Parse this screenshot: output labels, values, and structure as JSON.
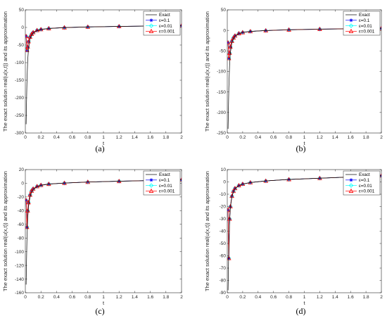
{
  "chart_data": [
    {
      "type": "line",
      "caption": "(a)",
      "xlabel": "t",
      "ylabel": "The exact solution real(u(x,t)) and its approximation",
      "xlim": [
        0,
        2
      ],
      "ylim": [
        -300,
        50
      ],
      "xticks": [
        "0",
        "0.2",
        "0.4",
        "0.6",
        "0.8",
        "1",
        "1.2",
        "1.4",
        "1.6",
        "1.8",
        "2"
      ],
      "yticks": [
        "-300",
        "-250",
        "-200",
        "-150",
        "-100",
        "-50",
        "0",
        "50"
      ],
      "legend_position": "top-right",
      "series": [
        {
          "name": "Exact",
          "color": "#000000",
          "marker": "none",
          "x": [
            0.01,
            0.02,
            0.03,
            0.04,
            0.06,
            0.08,
            0.1,
            0.15,
            0.2,
            0.3,
            0.5,
            0.8,
            1.2,
            1.6,
            2.0
          ],
          "y": [
            -275,
            -160,
            -95,
            -62,
            -33,
            -22,
            -16,
            -9,
            -6,
            -3,
            -0.5,
            1.5,
            3,
            4,
            5
          ]
        },
        {
          "name": "ε=0.1",
          "color": "#0000ff",
          "marker": "star",
          "x": [
            0.01,
            0.02,
            0.03,
            0.04,
            0.06,
            0.08,
            0.1,
            0.15,
            0.2,
            0.3,
            0.5,
            0.8,
            1.2,
            1.6,
            2.0
          ],
          "y": [
            -25,
            -65,
            -55,
            -40,
            -27,
            -19,
            -14,
            -8,
            -5.5,
            -2.8,
            -0.4,
            1.5,
            3,
            4,
            5
          ]
        },
        {
          "name": "ε=0.01",
          "color": "#00ffff",
          "marker": "diamond",
          "x": [
            0.01,
            0.02,
            0.03,
            0.04,
            0.06,
            0.08,
            0.1,
            0.15,
            0.2,
            0.3,
            0.5,
            0.8,
            1.2,
            1.6,
            2.0
          ],
          "y": [
            -25,
            -65,
            -55,
            -40,
            -27,
            -19,
            -14,
            -8,
            -5.5,
            -2.8,
            -0.4,
            1.5,
            3,
            4,
            5
          ]
        },
        {
          "name": "ε=0.001",
          "color": "#ff0000",
          "marker": "triangle",
          "x": [
            0.01,
            0.02,
            0.03,
            0.04,
            0.06,
            0.08,
            0.1,
            0.15,
            0.2,
            0.3,
            0.5,
            0.8,
            1.2,
            1.6,
            2.0
          ],
          "y": [
            -25,
            -65,
            -55,
            -40,
            -27,
            -19,
            -14,
            -8,
            -5.5,
            -2.8,
            -0.4,
            1.5,
            3,
            4,
            5
          ]
        }
      ]
    },
    {
      "type": "line",
      "caption": "(b)",
      "xlabel": "t",
      "ylabel": "The exact solution real(u(x,t)) and its approximation",
      "xlim": [
        0,
        2
      ],
      "ylim": [
        -250,
        50
      ],
      "xticks": [
        "0",
        "0.2",
        "0.4",
        "0.6",
        "0.8",
        "1",
        "1.2",
        "1.4",
        "1.6",
        "1.8",
        "2"
      ],
      "yticks": [
        "-250",
        "-200",
        "-150",
        "-100",
        "-50",
        "0",
        "50"
      ],
      "legend_position": "top-right",
      "series": [
        {
          "name": "Exact",
          "color": "#000000",
          "marker": "none",
          "x": [
            0.01,
            0.02,
            0.03,
            0.04,
            0.06,
            0.08,
            0.1,
            0.15,
            0.2,
            0.3,
            0.5,
            0.8,
            1.2,
            1.6,
            2.0
          ],
          "y": [
            -240,
            -140,
            -85,
            -55,
            -30,
            -20,
            -14,
            -8,
            -5,
            -2.5,
            -0.4,
            1.5,
            3,
            4,
            5
          ]
        },
        {
          "name": "ε=0.1",
          "color": "#0000ff",
          "marker": "star",
          "x": [
            0.01,
            0.02,
            0.03,
            0.04,
            0.06,
            0.08,
            0.1,
            0.15,
            0.2,
            0.3,
            0.5,
            0.8,
            1.2,
            1.6,
            2.0
          ],
          "y": [
            -30,
            -68,
            -55,
            -40,
            -26,
            -18,
            -13,
            -7.5,
            -5,
            -2.5,
            -0.4,
            1.5,
            3,
            4,
            5
          ]
        },
        {
          "name": "ε=0.01",
          "color": "#00ffff",
          "marker": "diamond",
          "x": [
            0.01,
            0.02,
            0.03,
            0.04,
            0.06,
            0.08,
            0.1,
            0.15,
            0.2,
            0.3,
            0.5,
            0.8,
            1.2,
            1.6,
            2.0
          ],
          "y": [
            -30,
            -68,
            -55,
            -40,
            -26,
            -18,
            -13,
            -7.5,
            -5,
            -2.5,
            -0.4,
            1.5,
            3,
            4,
            5
          ]
        },
        {
          "name": "ε=0.001",
          "color": "#ff0000",
          "marker": "triangle",
          "x": [
            0.01,
            0.02,
            0.03,
            0.04,
            0.06,
            0.08,
            0.1,
            0.15,
            0.2,
            0.3,
            0.5,
            0.8,
            1.2,
            1.6,
            2.0
          ],
          "y": [
            -30,
            -68,
            -55,
            -40,
            -26,
            -18,
            -13,
            -7.5,
            -5,
            -2.5,
            -0.4,
            1.5,
            3,
            4,
            5
          ]
        }
      ]
    },
    {
      "type": "line",
      "caption": "(c)",
      "xlabel": "t",
      "ylabel": "The exact solution real(u(x,t)) and its approximation",
      "xlim": [
        0,
        2
      ],
      "ylim": [
        -160,
        20
      ],
      "xticks": [
        "0",
        "0.2",
        "0.4",
        "0.6",
        "0.8",
        "1",
        "1.2",
        "1.4",
        "1.6",
        "1.8",
        "2"
      ],
      "yticks": [
        "-160",
        "-140",
        "-120",
        "-100",
        "-80",
        "-60",
        "-40",
        "-20",
        "0",
        "20"
      ],
      "legend_position": "top-right",
      "series": [
        {
          "name": "Exact",
          "color": "#000000",
          "marker": "none",
          "x": [
            0.01,
            0.02,
            0.03,
            0.04,
            0.06,
            0.08,
            0.1,
            0.15,
            0.2,
            0.3,
            0.5,
            0.8,
            1.2,
            1.6,
            2.0
          ],
          "y": [
            -148,
            -85,
            -52,
            -35,
            -20,
            -13,
            -9,
            -5,
            -3,
            -1.2,
            0.3,
            1.8,
            3,
            4,
            5
          ]
        },
        {
          "name": "ε=0.1",
          "color": "#0000ff",
          "marker": "star",
          "x": [
            0.01,
            0.02,
            0.03,
            0.04,
            0.06,
            0.08,
            0.1,
            0.15,
            0.2,
            0.3,
            0.5,
            0.8,
            1.2,
            1.6,
            2.0
          ],
          "y": [
            -25,
            -64,
            -40,
            -28,
            -17,
            -11,
            -8,
            -4.5,
            -2.7,
            -1.1,
            0.3,
            1.8,
            3,
            4,
            5
          ]
        },
        {
          "name": "ε=0.01",
          "color": "#00ffff",
          "marker": "diamond",
          "x": [
            0.01,
            0.02,
            0.03,
            0.04,
            0.06,
            0.08,
            0.1,
            0.15,
            0.2,
            0.3,
            0.5,
            0.8,
            1.2,
            1.6,
            2.0
          ],
          "y": [
            -25,
            -64,
            -40,
            -28,
            -17,
            -11,
            -8,
            -4.5,
            -2.7,
            -1.1,
            0.3,
            1.8,
            3,
            4,
            5
          ]
        },
        {
          "name": "ε=0.001",
          "color": "#ff0000",
          "marker": "triangle",
          "x": [
            0.01,
            0.02,
            0.03,
            0.04,
            0.06,
            0.08,
            0.1,
            0.15,
            0.2,
            0.3,
            0.5,
            0.8,
            1.2,
            1.6,
            2.0
          ],
          "y": [
            -25,
            -64,
            -40,
            -28,
            -17,
            -11,
            -8,
            -4.5,
            -2.7,
            -1.1,
            0.3,
            1.8,
            3,
            4,
            5
          ]
        }
      ]
    },
    {
      "type": "line",
      "caption": "(d)",
      "xlabel": "t",
      "ylabel": "The exact solution real(u(x,t)) and its approximation",
      "xlim": [
        0,
        2
      ],
      "ylim": [
        -90,
        10
      ],
      "xticks": [
        "0",
        "0.2",
        "0.4",
        "0.6",
        "0.8",
        "1",
        "1.2",
        "1.4",
        "1.6",
        "1.8",
        "2"
      ],
      "yticks": [
        "-90",
        "-80",
        "-70",
        "-60",
        "-50",
        "-40",
        "-30",
        "-20",
        "-10",
        "0",
        "10"
      ],
      "legend_position": "top-right",
      "series": [
        {
          "name": "Exact",
          "color": "#000000",
          "marker": "none",
          "x": [
            0.01,
            0.02,
            0.03,
            0.04,
            0.06,
            0.08,
            0.1,
            0.15,
            0.2,
            0.3,
            0.5,
            0.8,
            1.2,
            1.6,
            2.0
          ],
          "y": [
            -88,
            -52,
            -32,
            -21,
            -12,
            -8,
            -5.5,
            -3,
            -1.8,
            -0.5,
            0.8,
            2,
            3,
            4,
            5
          ]
        },
        {
          "name": "ε=0.1",
          "color": "#0000ff",
          "marker": "star",
          "x": [
            0.01,
            0.02,
            0.03,
            0.04,
            0.06,
            0.08,
            0.1,
            0.15,
            0.2,
            0.3,
            0.5,
            0.8,
            1.2,
            1.6,
            2.0
          ],
          "y": [
            -23,
            -62,
            -30,
            -20,
            -11.5,
            -7.5,
            -5.2,
            -2.9,
            -1.7,
            -0.5,
            0.8,
            2,
            3,
            4,
            5
          ]
        },
        {
          "name": "ε=0.01",
          "color": "#00ffff",
          "marker": "diamond",
          "x": [
            0.01,
            0.02,
            0.03,
            0.04,
            0.06,
            0.08,
            0.1,
            0.15,
            0.2,
            0.3,
            0.5,
            0.8,
            1.2,
            1.6,
            2.0
          ],
          "y": [
            -23,
            -62,
            -30,
            -20,
            -11.5,
            -7.5,
            -5.2,
            -2.9,
            -1.7,
            -0.5,
            0.8,
            2,
            3,
            4,
            5
          ]
        },
        {
          "name": "ε=0.001",
          "color": "#ff0000",
          "marker": "triangle",
          "x": [
            0.01,
            0.02,
            0.03,
            0.04,
            0.06,
            0.08,
            0.1,
            0.15,
            0.2,
            0.3,
            0.5,
            0.8,
            1.2,
            1.6,
            2.0
          ],
          "y": [
            -23,
            -62,
            -30,
            -20,
            -11.5,
            -7.5,
            -5.2,
            -2.9,
            -1.7,
            -0.5,
            0.8,
            2,
            3,
            4,
            5
          ]
        }
      ]
    }
  ]
}
